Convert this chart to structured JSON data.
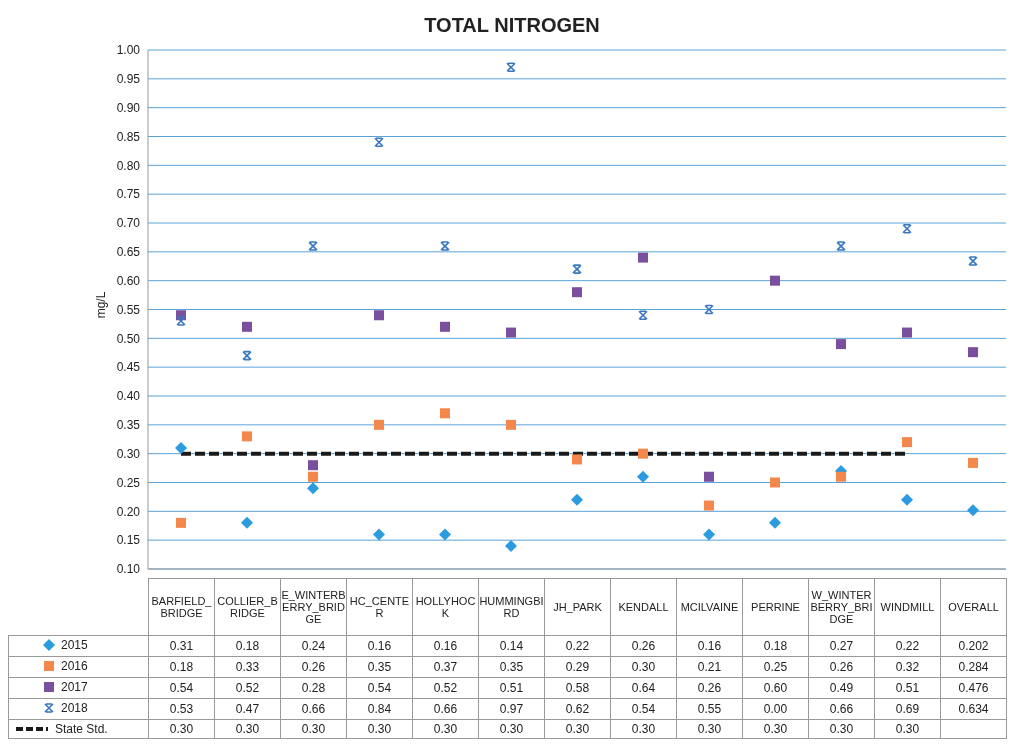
{
  "chart_data": {
    "type": "scatter",
    "title": "TOTAL NITROGEN",
    "ylabel": "mg/L",
    "categories": [
      "BARFIELD_BRIDGE",
      "COLLIER_BRIDGE",
      "E_WINTERBERRY_BRIDGE",
      "HC_CENTER",
      "HOLLYHOCK",
      "HUMMINGBIRD",
      "JH_PARK",
      "KENDALL",
      "MCILVAINE",
      "PERRINE",
      "W_WINTERBERRY_BRIDGE",
      "WINDMILL",
      "OVERALL"
    ],
    "ylim": [
      0.1,
      1.0
    ],
    "yticks": [
      {
        "value": 0.1,
        "label": "0.10"
      },
      {
        "value": 0.15,
        "label": "0.15"
      },
      {
        "value": 0.2,
        "label": "0.20"
      },
      {
        "value": 0.25,
        "label": "0.25"
      },
      {
        "value": 0.3,
        "label": "0.30"
      },
      {
        "value": 0.35,
        "label": "0.35"
      },
      {
        "value": 0.4,
        "label": "0.40"
      },
      {
        "value": 0.45,
        "label": "0.45"
      },
      {
        "value": 0.5,
        "label": "0.50"
      },
      {
        "value": 0.55,
        "label": "0.55"
      },
      {
        "value": 0.6,
        "label": "0.60"
      },
      {
        "value": 0.65,
        "label": "0.65"
      },
      {
        "value": 0.7,
        "label": "0.70"
      },
      {
        "value": 0.75,
        "label": "0.75"
      },
      {
        "value": 0.8,
        "label": "0.80"
      },
      {
        "value": 0.85,
        "label": "0.85"
      },
      {
        "value": 0.9,
        "label": "0.90"
      },
      {
        "value": 0.95,
        "label": "0.95"
      },
      {
        "value": 1.0,
        "label": "1.00"
      }
    ],
    "grid": "y",
    "legend": "bottom left",
    "series": [
      {
        "name": "2015",
        "color": "#2b9be0",
        "marker": "diamond",
        "values": [
          0.31,
          0.18,
          0.24,
          0.16,
          0.16,
          0.14,
          0.22,
          0.26,
          0.16,
          0.18,
          0.27,
          0.22,
          0.202
        ],
        "value_labels": [
          "0.31",
          "0.18",
          "0.24",
          "0.16",
          "0.16",
          "0.14",
          "0.22",
          "0.26",
          "0.16",
          "0.18",
          "0.27",
          "0.22",
          "0.202"
        ]
      },
      {
        "name": "2016",
        "color": "#f4874b",
        "marker": "square",
        "values": [
          0.18,
          0.33,
          0.26,
          0.35,
          0.37,
          0.35,
          0.29,
          0.3,
          0.21,
          0.25,
          0.26,
          0.32,
          0.284
        ],
        "value_labels": [
          "0.18",
          "0.33",
          "0.26",
          "0.35",
          "0.37",
          "0.35",
          "0.29",
          "0.30",
          "0.21",
          "0.25",
          "0.26",
          "0.32",
          "0.284"
        ]
      },
      {
        "name": "2017",
        "color": "#7a4f9e",
        "marker": "square",
        "values": [
          0.54,
          0.52,
          0.28,
          0.54,
          0.52,
          0.51,
          0.58,
          0.64,
          0.26,
          0.6,
          0.49,
          0.51,
          0.476
        ],
        "value_labels": [
          "0.54",
          "0.52",
          "0.28",
          "0.54",
          "0.52",
          "0.51",
          "0.58",
          "0.64",
          "0.26",
          "0.60",
          "0.49",
          "0.51",
          "0.476"
        ]
      },
      {
        "name": "2018",
        "color": "#3a78c0",
        "marker": "cross",
        "values": [
          0.53,
          0.47,
          0.66,
          0.84,
          0.66,
          0.97,
          0.62,
          0.54,
          0.55,
          null,
          0.66,
          0.69,
          0.634
        ],
        "value_labels": [
          "0.53",
          "0.47",
          "0.66",
          "0.84",
          "0.66",
          "0.97",
          "0.62",
          "0.54",
          "0.55",
          "0.00",
          "0.66",
          "0.69",
          "0.634"
        ]
      },
      {
        "name": "State Std.",
        "type": "line",
        "color": "#1a1a1a",
        "line_style": "dashed",
        "marker": "none",
        "values": [
          0.3,
          0.3,
          0.3,
          0.3,
          0.3,
          0.3,
          0.3,
          0.3,
          0.3,
          0.3,
          0.3,
          0.3,
          null
        ],
        "value_labels": [
          "0.30",
          "0.30",
          "0.30",
          "0.30",
          "0.30",
          "0.30",
          "0.30",
          "0.30",
          "0.30",
          "0.30",
          "0.30",
          "0.30",
          null
        ]
      }
    ]
  }
}
